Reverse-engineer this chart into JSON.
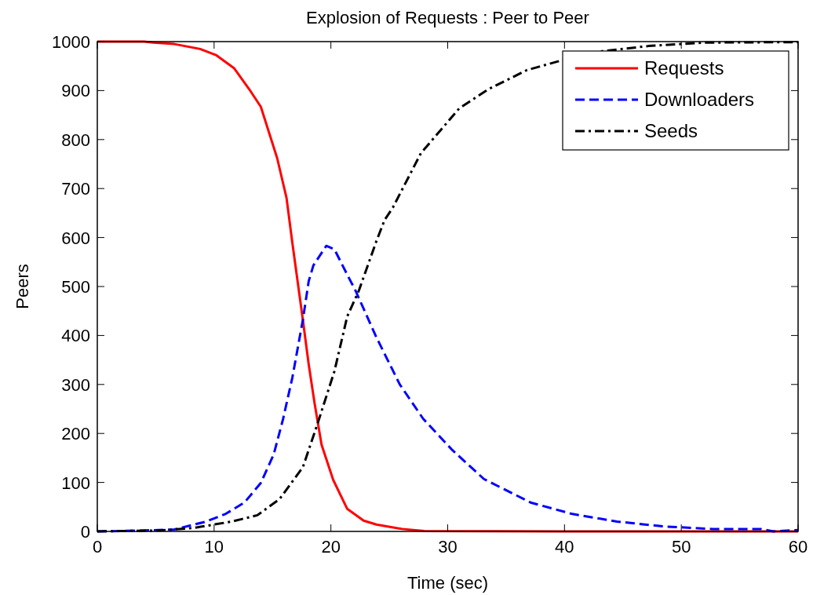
{
  "chart_data": {
    "type": "line",
    "title": "Explosion of Requests : Peer to Peer",
    "xlabel": "Time (sec)",
    "ylabel": "Peers",
    "xlim": [
      0,
      60
    ],
    "xticks": [
      0,
      10,
      20,
      30,
      40,
      50,
      60
    ],
    "ylim": [
      0,
      1000
    ],
    "yticks": [
      0,
      100,
      200,
      300,
      400,
      500,
      600,
      700,
      800,
      900,
      1000
    ],
    "grid": false,
    "legend": "top right",
    "series": [
      {
        "name": "Requests",
        "color": "#ff0000",
        "line_style": "solid",
        "x": [
          0,
          4,
          4.8,
          6.6,
          8.8,
          10.2,
          11.7,
          13,
          14,
          15.4,
          16.2,
          16.7,
          17.6,
          18.1,
          18.6,
          19.2,
          20.2,
          21.4,
          22.8,
          23.9,
          26.1,
          28,
          40,
          57,
          60
        ],
        "values": [
          1000,
          1000,
          998,
          995,
          985,
          972,
          946,
          903,
          867,
          762,
          681,
          589,
          432,
          341,
          262,
          177,
          105,
          46,
          22,
          14,
          5,
          1,
          0,
          0,
          0
        ]
      },
      {
        "name": "Downloaders",
        "color": "#0000ff",
        "line_style": "dashed",
        "x": [
          0,
          4.1,
          6.6,
          9.3,
          11,
          12.6,
          14,
          15.1,
          15.9,
          16.7,
          17.6,
          18.1,
          18.5,
          19.6,
          20.3,
          21.4,
          22.1,
          23.9,
          25.9,
          27.9,
          30.4,
          33.1,
          37.1,
          40.6,
          44.5,
          48.6,
          52.7,
          56.8,
          57.9,
          60
        ],
        "values": [
          0,
          2,
          4,
          20,
          36,
          59,
          99,
          157,
          229,
          314,
          432,
          511,
          543,
          583,
          576,
          524,
          492,
          396,
          300,
          230,
          166,
          107,
          59,
          36,
          20,
          10,
          5,
          5,
          0,
          3
        ]
      },
      {
        "name": "Seeds",
        "color": "#000000",
        "line_style": "dashdot",
        "x": [
          0,
          5.4,
          8.2,
          11.5,
          13.7,
          15.6,
          17.6,
          18.9,
          20.3,
          21.4,
          22.4,
          23.9,
          24.6,
          25.3,
          27.7,
          31,
          33.5,
          36.8,
          39.8,
          43.1,
          47.2,
          51.9,
          60
        ],
        "values": [
          0,
          2,
          7,
          20,
          33,
          66,
          131,
          223,
          327,
          439,
          492,
          593,
          636,
          661,
          772,
          864,
          903,
          942,
          962,
          980,
          991,
          998,
          999
        ]
      }
    ]
  }
}
